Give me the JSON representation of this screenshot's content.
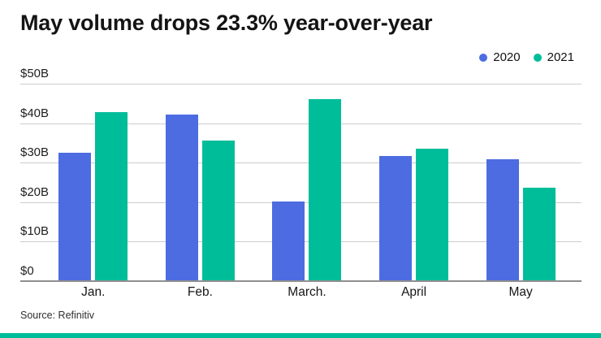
{
  "title": "May volume drops 23.3% year-over-year",
  "source": "Source: Refinitiv",
  "legend": {
    "position": "top-right",
    "items": [
      {
        "label": "2020",
        "color": "#4D6CE1"
      },
      {
        "label": "2021",
        "color": "#00BD9A"
      }
    ]
  },
  "colors": {
    "series_2020": "#4D6CE1",
    "series_2021": "#00BD9A",
    "gridline": "#cccccc",
    "axis_baseline": "#8f8f8f",
    "accent_bar": "#00BD9A",
    "title_text": "#141414",
    "tick_text": "#1e1e1e",
    "source_text": "#2e2e2e",
    "background": "#ffffff"
  },
  "chart_data": {
    "type": "bar",
    "categories": [
      "Jan.",
      "Feb.",
      "March.",
      "April",
      "May"
    ],
    "series": [
      {
        "name": "2020",
        "color": "#4D6CE1",
        "values": [
          32.6,
          42.1,
          20.1,
          31.6,
          30.9
        ]
      },
      {
        "name": "2021",
        "color": "#00BD9A",
        "values": [
          42.8,
          35.6,
          46.2,
          33.6,
          23.7
        ]
      }
    ],
    "title": "May volume drops 23.3% year-over-year",
    "xlabel": "",
    "ylabel": "",
    "ylim": [
      0,
      50
    ],
    "y_ticks": [
      {
        "value": 0,
        "label": "$0"
      },
      {
        "value": 10,
        "label": "$10B"
      },
      {
        "value": 20,
        "label": "$20B"
      },
      {
        "value": 30,
        "label": "$30B"
      },
      {
        "value": 40,
        "label": "$40B"
      },
      {
        "value": 50,
        "label": "$50B"
      }
    ],
    "grid": true,
    "legend_position": "top-right"
  }
}
